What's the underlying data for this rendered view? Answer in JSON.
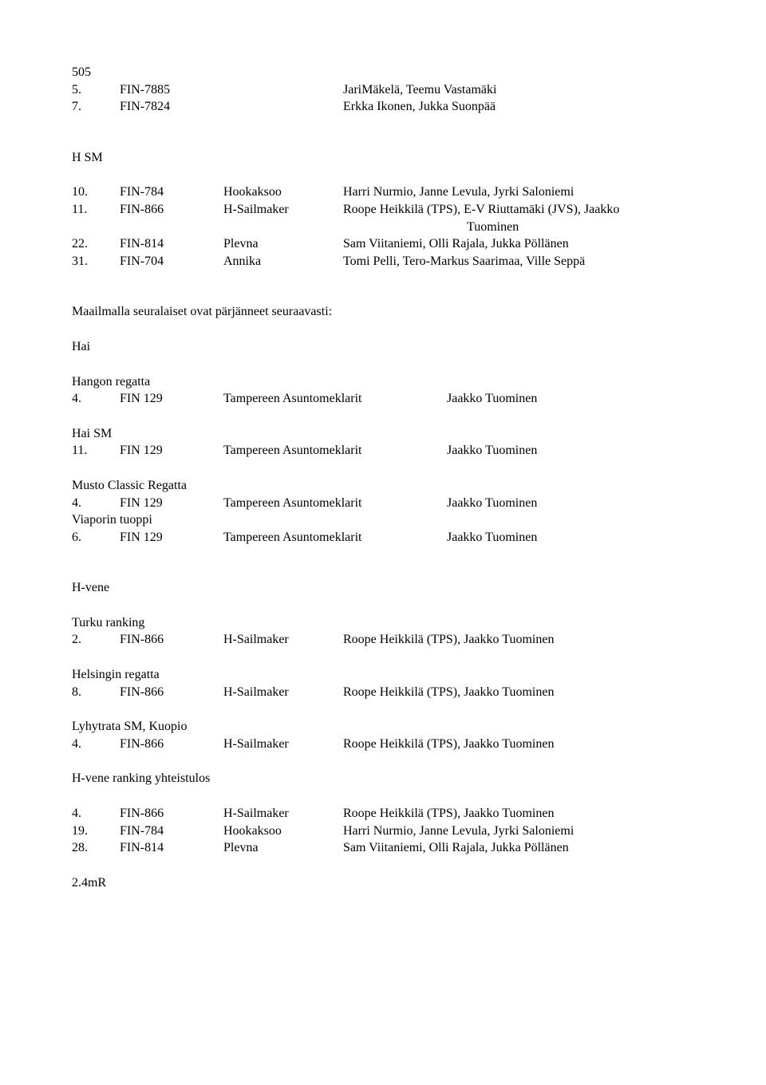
{
  "s505": {
    "heading": "505",
    "rows": [
      {
        "pos": "5.",
        "id": "FIN-7885",
        "crew": "JariMäkelä, Teemu Vastamäki"
      },
      {
        "pos": "7.",
        "id": "FIN-7824",
        "crew": "Erkka Ikonen, Jukka Suonpää"
      }
    ]
  },
  "hsm": {
    "heading": "H SM",
    "rows": [
      {
        "pos": "10.",
        "id": "FIN-784",
        "name": "Hookaksoo",
        "crew": "Harri Nurmio, Janne Levula, Jyrki Saloniemi"
      },
      {
        "pos": "11.",
        "id": "FIN-866",
        "name": "H-Sailmaker",
        "crew": "Roope Heikkilä (TPS), E-V Riuttamäki (JVS), Jaakko"
      }
    ],
    "tuominen": "Tuominen",
    "rows2": [
      {
        "pos": "22.",
        "id": "FIN-814",
        "name": "Plevna",
        "crew": "Sam Viitaniemi, Olli Rajala, Jukka Pöllänen"
      },
      {
        "pos": "31.",
        "id": "FIN-704",
        "name": "Annika",
        "crew": "Tomi Pelli, Tero-Markus Saarimaa, Ville Seppä"
      }
    ]
  },
  "intro": "Maailmalla seuralaiset ovat pärjänneet seuraavasti:",
  "hai": {
    "heading": "Hai",
    "hangon": {
      "title": "Hangon regatta",
      "row": {
        "pos": "4.",
        "id": "FIN 129",
        "boat": "Tampereen Asuntomeklarit",
        "skipper": "Jaakko Tuominen"
      }
    },
    "haism": {
      "title": "Hai SM",
      "row": {
        "pos": "11.",
        "id": "FIN 129",
        "boat": "Tampereen Asuntomeklarit",
        "skipper": "Jaakko Tuominen"
      }
    },
    "musto": {
      "title": "Musto Classic Regatta",
      "row": {
        "pos": "4.",
        "id": "FIN 129",
        "boat": "Tampereen Asuntomeklarit",
        "skipper": "Jaakko Tuominen"
      }
    },
    "viaporin": {
      "title": "Viaporin tuoppi",
      "row": {
        "pos": "6.",
        "id": "FIN 129",
        "boat": "Tampereen Asuntomeklarit",
        "skipper": "Jaakko Tuominen"
      }
    }
  },
  "hvene": {
    "heading": "H-vene",
    "turku": {
      "title": "Turku ranking",
      "row": {
        "pos": "2.",
        "id": "FIN-866",
        "name": "H-Sailmaker",
        "crew": "Roope Heikkilä (TPS), Jaakko Tuominen"
      }
    },
    "helsingin": {
      "title": "Helsingin regatta",
      "row": {
        "pos": "8.",
        "id": "FIN-866",
        "name": "H-Sailmaker",
        "crew": "Roope Heikkilä (TPS), Jaakko Tuominen"
      }
    },
    "lyhytrata": {
      "title": "Lyhytrata SM, Kuopio",
      "row": {
        "pos": "4.",
        "id": "FIN-866",
        "name": "H-Sailmaker",
        "crew": "Roope Heikkilä (TPS), Jaakko Tuominen"
      }
    },
    "yhteistulos": {
      "title": "H-vene ranking yhteistulos",
      "rows": [
        {
          "pos": "4.",
          "id": "FIN-866",
          "name": "H-Sailmaker",
          "crew": "Roope Heikkilä (TPS), Jaakko Tuominen"
        },
        {
          "pos": "19.",
          "id": "FIN-784",
          "name": "Hookaksoo",
          "crew": "Harri Nurmio, Janne Levula, Jyrki Saloniemi"
        },
        {
          "pos": "28.",
          "id": "FIN-814",
          "name": "Plevna",
          "crew": "Sam Viitaniemi, Olli Rajala, Jukka Pöllänen"
        }
      ]
    }
  },
  "footer": "2.4mR"
}
